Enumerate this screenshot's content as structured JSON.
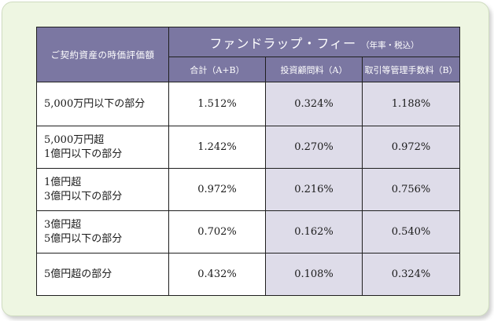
{
  "table": {
    "header": {
      "basis": "ご契約資産の時価評価額",
      "fee_title": "ファンドラップ・フィー",
      "fee_note": "（年率・税込）",
      "col_total": "合計（A+B）",
      "col_advisory": "投資顧問料（A）",
      "col_management": "取引等管理手数料（B）"
    },
    "rows": [
      {
        "label_lines": [
          "5,000万円以下の部分"
        ],
        "total": "1.512%",
        "advisory": "0.324%",
        "management": "1.188%"
      },
      {
        "label_lines": [
          "5,000万円超",
          "1億円以下の部分"
        ],
        "total": "1.242%",
        "advisory": "0.270%",
        "management": "0.972%"
      },
      {
        "label_lines": [
          "1億円超",
          "3億円以下の部分"
        ],
        "total": "0.972%",
        "advisory": "0.216%",
        "management": "0.756%"
      },
      {
        "label_lines": [
          "3億円超",
          "5億円以下の部分"
        ],
        "total": "0.702%",
        "advisory": "0.162%",
        "management": "0.540%"
      },
      {
        "label_lines": [
          "5億円超の部分"
        ],
        "total": "0.432%",
        "advisory": "0.108%",
        "management": "0.324%"
      }
    ]
  },
  "colors": {
    "header_bg": "#7b77a2",
    "shaded_cell_bg": "#dedce9",
    "panel_bg": "#eef6e2"
  }
}
